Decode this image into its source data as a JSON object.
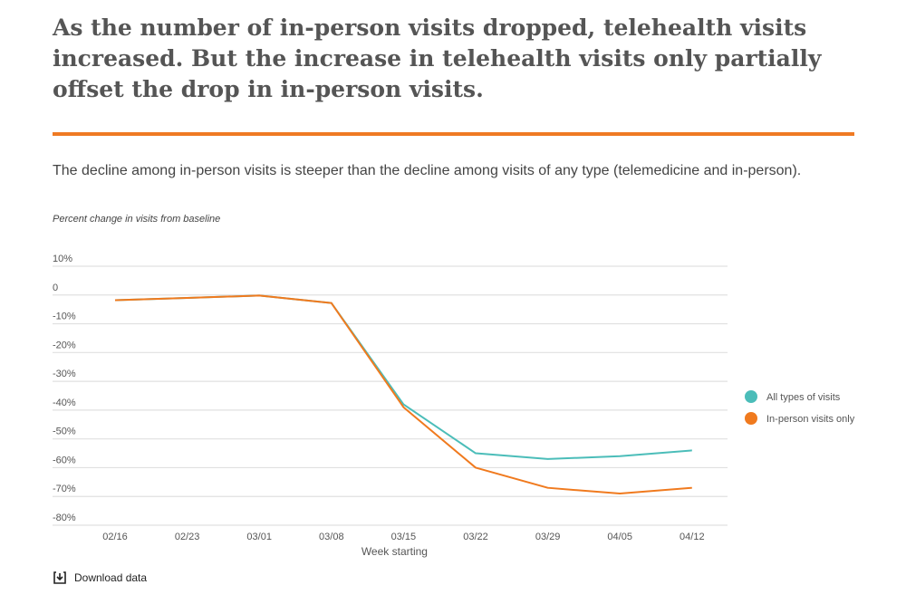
{
  "title": "As the number of in-person visits dropped, telehealth visits increased. But the increase in telehealth visits only partially offset the drop in in-person visits.",
  "subtitle": "The decline among in-person visits is steeper than the decline among visits of any type (telemedicine and in-person).",
  "download_label": "Download data",
  "colors": {
    "accent": "#ef7a23",
    "teal": "#4bbdb9",
    "orange": "#f07a1e"
  },
  "chart_data": {
    "type": "line",
    "ylabel": "Percent change in visits from baseline",
    "xlabel": "Week starting",
    "categories": [
      "02/16",
      "02/23",
      "03/01",
      "03/08",
      "03/15",
      "03/22",
      "03/29",
      "04/05",
      "04/12"
    ],
    "yticks": [
      10,
      0,
      -10,
      -20,
      -30,
      -40,
      -50,
      -60,
      -70,
      -80
    ],
    "ytick_labels": [
      "10%",
      "0",
      "-10%",
      "-20%",
      "-30%",
      "-40%",
      "-50%",
      "-60%",
      "-70%",
      "-80%"
    ],
    "ylim": [
      -80,
      10
    ],
    "grid": true,
    "legend": "right",
    "series": [
      {
        "name": "All types of visits",
        "color": "#4bbdb9",
        "values": [
          -1.8,
          -1,
          -0.2,
          -2.8,
          -38,
          -55,
          -57,
          -56,
          -54
        ]
      },
      {
        "name": "In-person visits only",
        "color": "#f07a1e",
        "values": [
          -1.8,
          -1,
          -0.2,
          -2.8,
          -39,
          -60,
          -67,
          -69,
          -67
        ]
      }
    ]
  }
}
